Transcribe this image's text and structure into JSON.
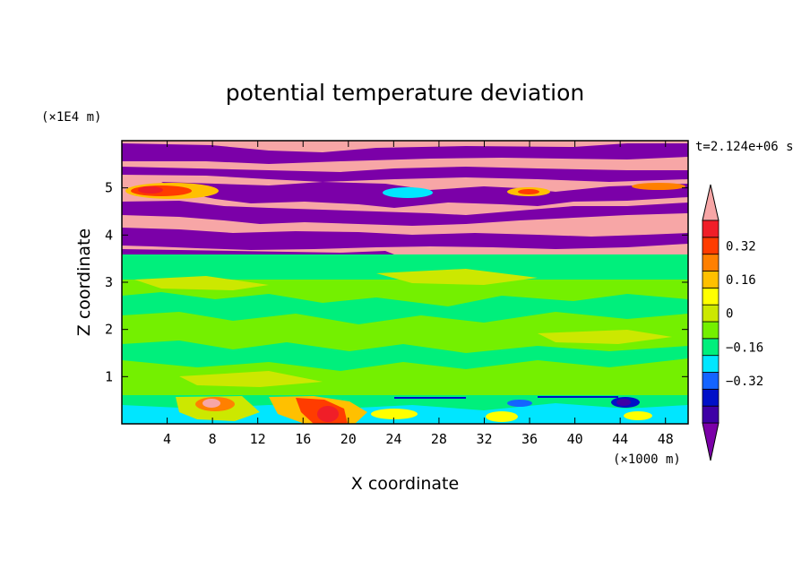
{
  "chart_data": {
    "type": "heatmap",
    "title": "potential temperature deviation",
    "xlabel": "X coordinate",
    "ylabel": "Z coordinate",
    "x_unit": "(×1000 m)",
    "y_unit": "(×1E4 m)",
    "time_label": "t=2.124e+06 s",
    "xlim": [
      0,
      50
    ],
    "ylim": [
      0,
      6
    ],
    "x_ticks": [
      4,
      8,
      12,
      16,
      20,
      24,
      28,
      32,
      36,
      40,
      44,
      48
    ],
    "y_ticks": [
      1,
      2,
      3,
      4,
      5
    ],
    "colorbar": {
      "labels": [
        "0.32",
        "0.16",
        "0",
        "-0.16",
        "-0.32"
      ],
      "colors": [
        "#7b00a8",
        "#3e00a6",
        "#0010c8",
        "#1464ff",
        "#00e6ff",
        "#00ef7c",
        "#74f000",
        "#cce800",
        "#ffff00",
        "#ffc000",
        "#ff8000",
        "#ff3c00",
        "#f01e28",
        "#f7a6a6"
      ]
    },
    "field_zones": [
      {
        "z_range": [
          0,
          0.6
        ],
        "dominant": "cyan / light-green with positive anomalies near x 6-11, 14-21, 24-26 and negative anomalies near x 33-36, 42-47"
      },
      {
        "z_range": [
          0.6,
          3.6
        ],
        "dominant": "green / yellow-green mottled, near 0"
      },
      {
        "z_range": [
          3.6,
          6.0
        ],
        "dominant": "alternating pink (>0.36) and purple (<-0.36) bands with orange/red anomalies near z 5"
      }
    ]
  }
}
